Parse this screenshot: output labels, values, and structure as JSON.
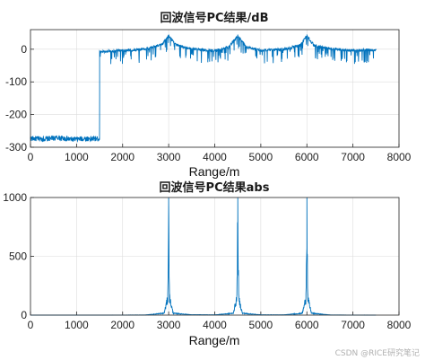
{
  "chart_data": [
    {
      "type": "line",
      "title": "回波信号PC结果/dB",
      "xlabel": "Range/m",
      "ylabel": "",
      "xlim": [
        0,
        8000
      ],
      "ylim": [
        -300,
        60
      ],
      "xticks": [
        "0",
        "1000",
        "2000",
        "3000",
        "4000",
        "5000",
        "6000",
        "7000",
        "8000"
      ],
      "yticks": [
        "-300",
        "-200",
        "-100",
        "0"
      ],
      "grid": true,
      "color": "#0072bd",
      "series": [
        {
          "x": [
            0,
            300,
            600,
            900,
            1200,
            1499,
            1501,
            1700,
            2000,
            2300,
            2600,
            2850,
            3000,
            3150,
            3400,
            3700,
            4000,
            4300,
            4500,
            4700,
            5000,
            5300,
            5600,
            5850,
            6000,
            6150,
            6400,
            6700,
            7000,
            7300,
            7500
          ],
          "y": [
            -273,
            -275,
            -271,
            -276,
            -274,
            -274,
            -5,
            -2,
            0,
            2,
            8,
            18,
            45,
            18,
            8,
            2,
            0,
            10,
            45,
            10,
            0,
            2,
            6,
            16,
            45,
            16,
            8,
            2,
            0,
            2,
            0
          ]
        }
      ]
    },
    {
      "type": "line",
      "title": "回波信号PC结果abs",
      "xlabel": "Range/m",
      "ylabel": "",
      "xlim": [
        0,
        8000
      ],
      "ylim": [
        0,
        1000
      ],
      "xticks": [
        "0",
        "1000",
        "2000",
        "3000",
        "4000",
        "5000",
        "6000",
        "7000",
        "8000"
      ],
      "yticks": [
        "0",
        "500",
        "1000"
      ],
      "grid": true,
      "color": "#0072bd",
      "series": [
        {
          "x": [
            0,
            1500,
            2500,
            2900,
            2980,
            3000,
            3020,
            3100,
            3500,
            4000,
            4400,
            4480,
            4500,
            4520,
            4600,
            5000,
            5500,
            5900,
            5980,
            6000,
            6020,
            6100,
            6500,
            7500
          ],
          "y": [
            0,
            0,
            2,
            20,
            180,
            1000,
            180,
            20,
            4,
            3,
            20,
            180,
            1000,
            180,
            20,
            3,
            3,
            20,
            180,
            1000,
            180,
            20,
            2,
            0
          ]
        }
      ]
    }
  ],
  "watermark": "CSDN @RICE研究笔记"
}
